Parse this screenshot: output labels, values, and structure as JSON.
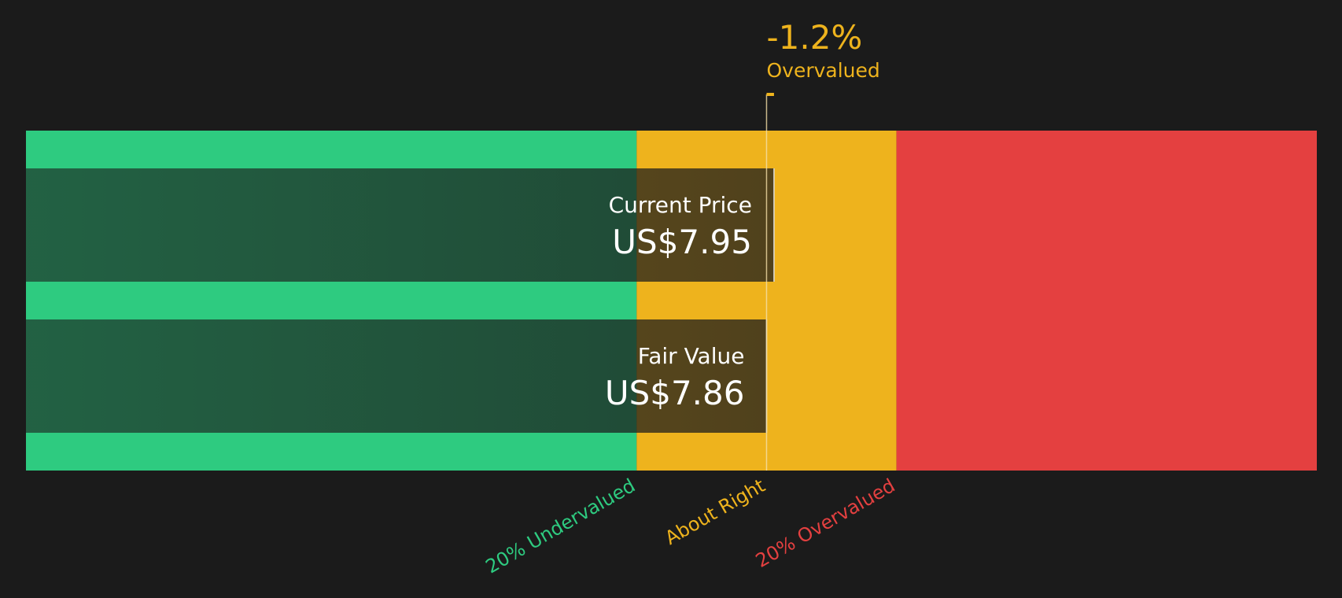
{
  "chart_data": {
    "type": "valuation-bar",
    "categories": [
      "Current Price",
      "Fair Value"
    ],
    "values": [
      7.95,
      7.86
    ],
    "value_labels": [
      "US$7.95",
      "US$7.86"
    ],
    "xlim": [
      -1.09,
      14.51
    ],
    "thresholds": [
      {
        "label": "20% Undervalued",
        "value": 6.29,
        "color": "#2ecb80"
      },
      {
        "label": "About Right",
        "value": 7.86,
        "color": "#eeb31d"
      },
      {
        "label": "20% Overvalued",
        "value": 9.43,
        "color": "#e44040"
      }
    ],
    "difference_label": "-1.2%",
    "difference_text": "Overvalued",
    "annotation_color": "#eeb31d"
  }
}
